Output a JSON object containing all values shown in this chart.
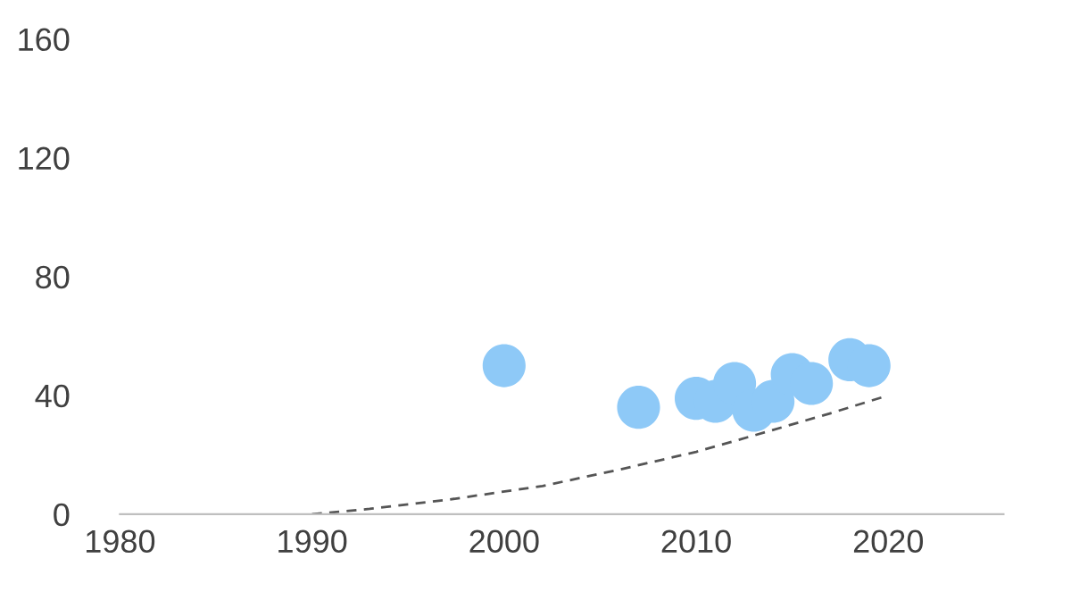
{
  "chart_data": {
    "type": "scatter",
    "xlim": [
      1980,
      2026
    ],
    "xticks": [
      1980,
      1990,
      2000,
      2010,
      2020
    ],
    "ylim": [
      0,
      160
    ],
    "yticks": [
      0,
      40,
      80,
      120,
      160
    ],
    "grid": false,
    "legend": false,
    "marker": "circle",
    "series": [
      {
        "color": "#8ec9f7",
        "x": [
          2000,
          2007,
          2010,
          2011,
          2012,
          2013,
          2014,
          2015,
          2016,
          2018,
          2019
        ],
        "values": [
          50,
          36,
          39,
          38,
          44,
          35,
          38,
          47,
          44,
          52,
          50
        ]
      },
      {
        "type": "line",
        "color": "#555555",
        "line_style": "dashed",
        "marker": "none",
        "x": [
          1990,
          1993,
          1997,
          2002,
          2006,
          2010,
          2013,
          2017,
          2020
        ],
        "values": [
          0,
          1.8,
          4.8,
          9.5,
          15,
          21,
          26.5,
          34,
          40
        ]
      }
    ]
  }
}
